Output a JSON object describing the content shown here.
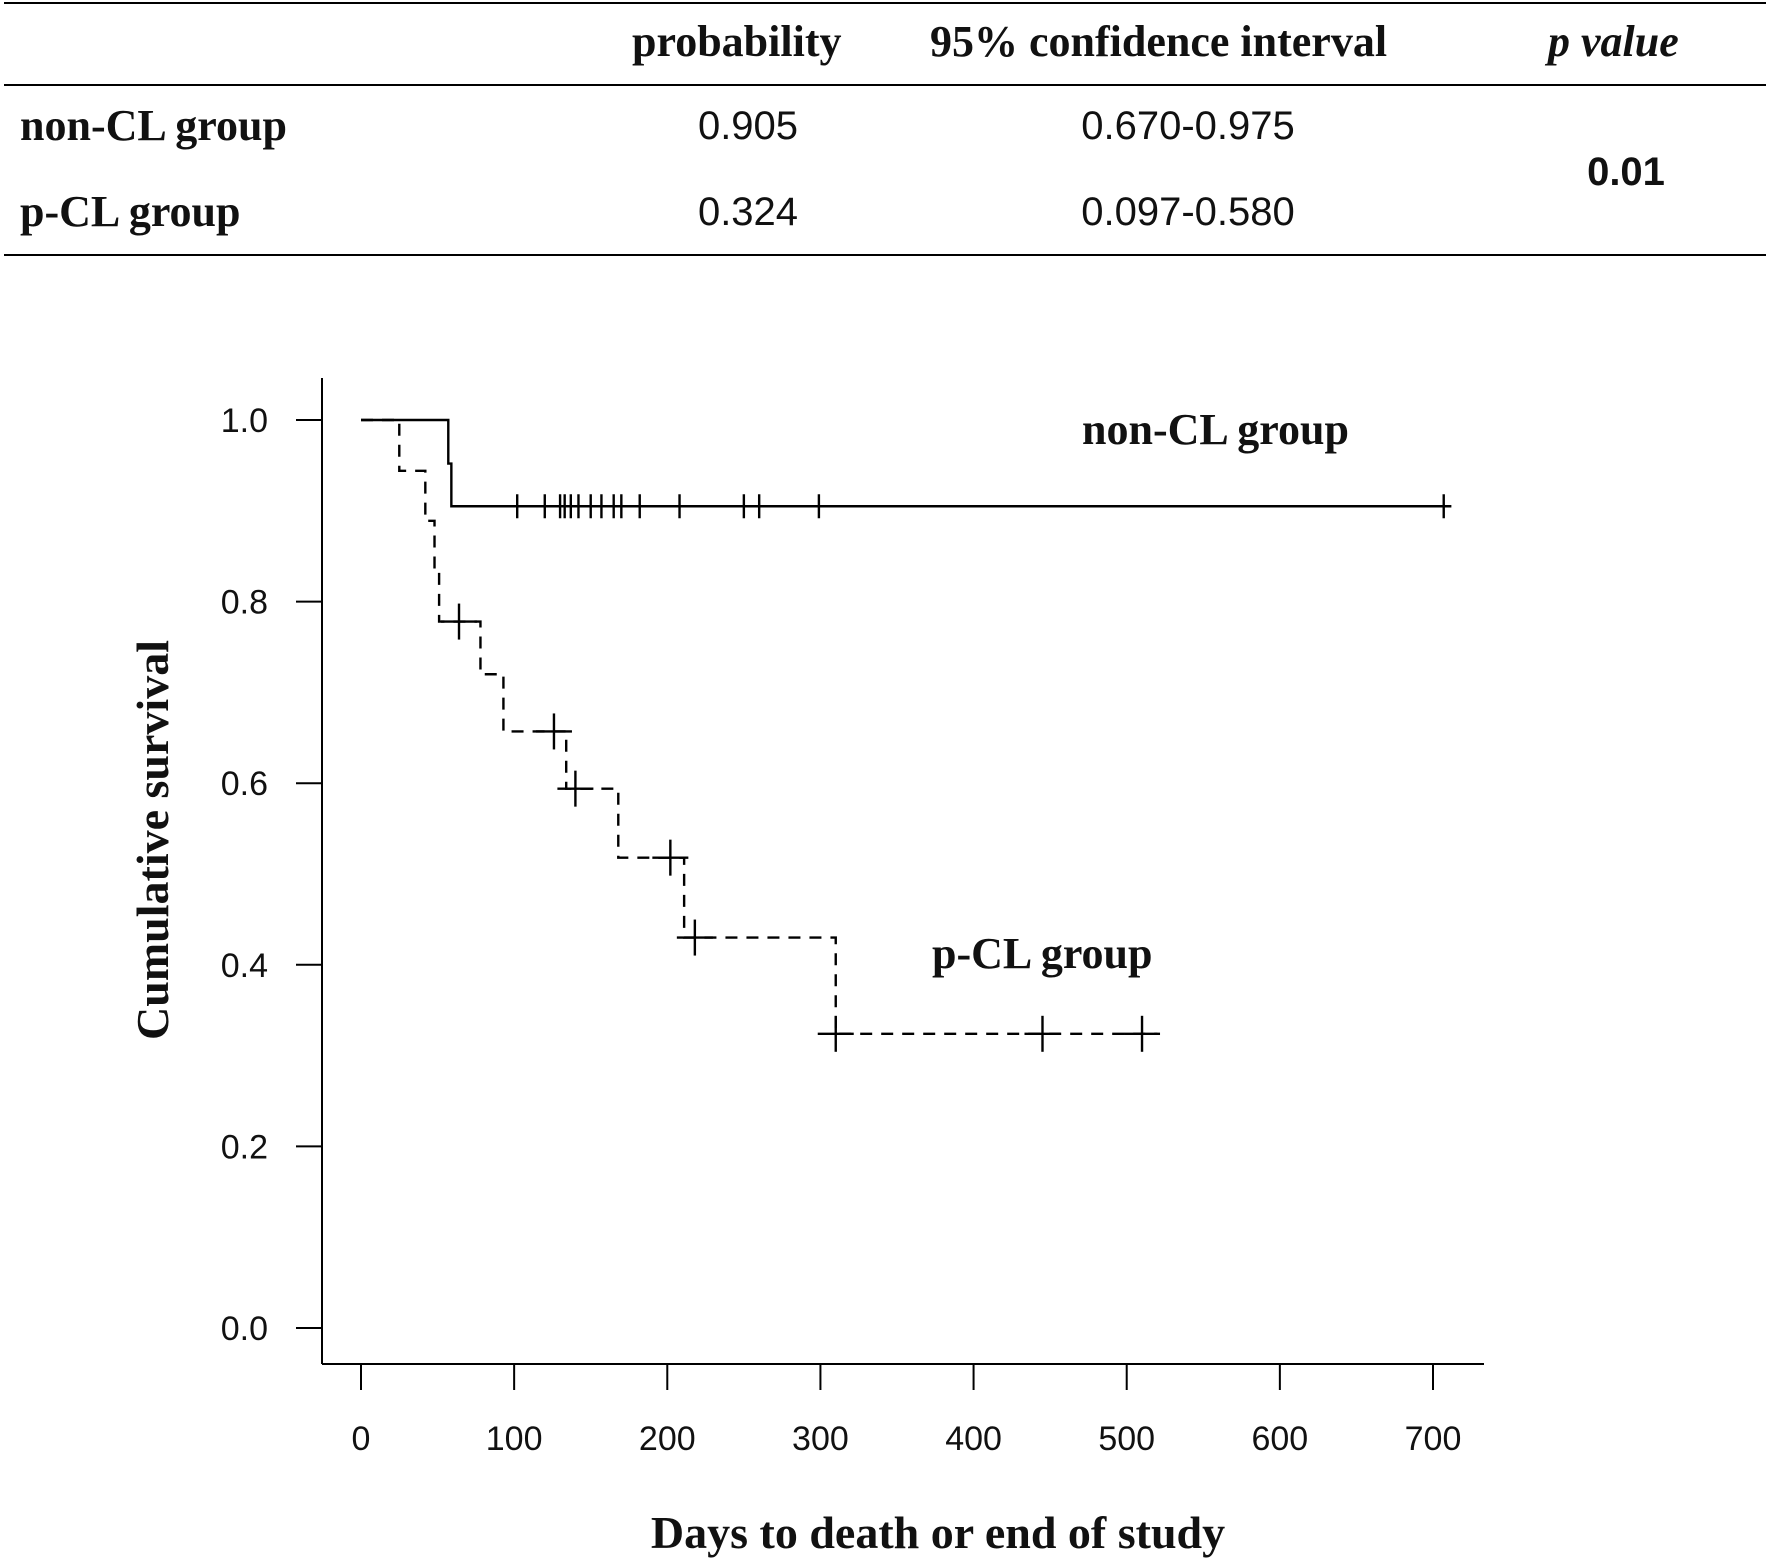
{
  "table": {
    "headers": {
      "probability": "probability",
      "ci": "95% confidence interval",
      "p": "p value"
    },
    "rows": [
      {
        "label": "non-CL group",
        "probability": "0.905",
        "ci": "0.670-0.975"
      },
      {
        "label": "p-CL group",
        "probability": "0.324",
        "ci": "0.097-0.580"
      }
    ],
    "p_value": "0.01"
  },
  "chart_data": {
    "type": "line",
    "title": "",
    "xlabel": "Days to death or end of study",
    "ylabel": "Cumulative  survival",
    "xlim": [
      0,
      700
    ],
    "ylim": [
      0,
      1.0
    ],
    "xticks": [
      0,
      100,
      200,
      300,
      400,
      500,
      600,
      700
    ],
    "yticks": [
      0.0,
      0.2,
      0.4,
      0.6,
      0.8,
      1.0
    ],
    "xtick_labels": [
      "0",
      "100",
      "200",
      "300",
      "400",
      "500",
      "600",
      "700"
    ],
    "ytick_labels": [
      "0.0",
      "0.2",
      "0.4",
      "0.6",
      "0.8",
      "1.0"
    ],
    "grid": false,
    "series": [
      {
        "name": "non-CL group",
        "style": "solid",
        "steps": [
          [
            0,
            1.0
          ],
          [
            57,
            0.952
          ],
          [
            59,
            0.905
          ],
          [
            712,
            0.905
          ]
        ],
        "censored": [
          [
            102,
            0.905
          ],
          [
            120,
            0.905
          ],
          [
            130,
            0.905
          ],
          [
            133,
            0.905
          ],
          [
            137,
            0.905
          ],
          [
            142,
            0.905
          ],
          [
            150,
            0.905
          ],
          [
            157,
            0.905
          ],
          [
            165,
            0.905
          ],
          [
            170,
            0.905
          ],
          [
            182,
            0.905
          ],
          [
            208,
            0.905
          ],
          [
            250,
            0.905
          ],
          [
            260,
            0.905
          ],
          [
            299,
            0.905
          ],
          [
            707,
            0.905
          ]
        ]
      },
      {
        "name": "p-CL group",
        "style": "dashed",
        "steps": [
          [
            0,
            1.0
          ],
          [
            25,
            0.944
          ],
          [
            42,
            0.889
          ],
          [
            48,
            0.833
          ],
          [
            51,
            0.778
          ],
          [
            78,
            0.72
          ],
          [
            93,
            0.657
          ],
          [
            134,
            0.594
          ],
          [
            168,
            0.518
          ],
          [
            211,
            0.43
          ],
          [
            310,
            0.324
          ],
          [
            520,
            0.324
          ]
        ],
        "censored": [
          [
            64,
            0.778
          ],
          [
            126,
            0.657
          ],
          [
            140,
            0.594
          ],
          [
            202,
            0.518
          ],
          [
            218,
            0.43
          ],
          [
            310,
            0.324
          ],
          [
            445,
            0.324
          ],
          [
            510,
            0.324
          ]
        ]
      }
    ],
    "annotations": [
      "non-CL group",
      "p-CL group"
    ]
  }
}
